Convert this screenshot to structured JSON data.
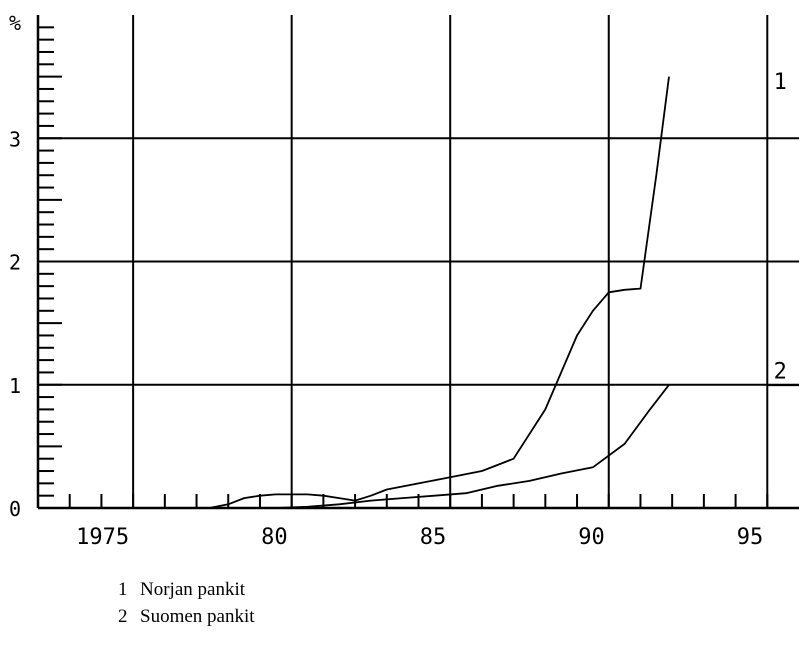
{
  "chart_data": {
    "type": "line",
    "ylabel": "%",
    "xlim": [
      1972,
      1996
    ],
    "ylim": [
      0,
      4
    ],
    "x_ticks": [
      1975,
      1980,
      1985,
      1990,
      1995
    ],
    "x_tick_labels": [
      "1975",
      "80",
      "85",
      "90",
      "95"
    ],
    "y_ticks": [
      0,
      1,
      2,
      3
    ],
    "y_tick_labels": [
      "0",
      "1",
      "2",
      "3"
    ],
    "grid": true,
    "series": [
      {
        "name": "Norjan pankit",
        "label": "1",
        "x": [
          1977.4,
          1978.0,
          1978.5,
          1979.0,
          1979.5,
          1980.0,
          1980.5,
          1981.0,
          1981.5,
          1982.0,
          1982.5,
          1983.0,
          1984.0,
          1985.0,
          1986.0,
          1986.5,
          1987.0,
          1988.0,
          1988.5,
          1989.0,
          1989.5,
          1990.0,
          1990.5,
          1991.0,
          1991.5,
          1991.9
        ],
        "y": [
          0.0,
          0.03,
          0.08,
          0.1,
          0.11,
          0.11,
          0.11,
          0.1,
          0.08,
          0.06,
          0.1,
          0.15,
          0.2,
          0.25,
          0.3,
          0.35,
          0.4,
          0.8,
          1.1,
          1.4,
          1.6,
          1.75,
          1.77,
          1.78,
          2.7,
          3.5
        ]
      },
      {
        "name": "Suomen pankit",
        "label": "2",
        "x": [
          1979.5,
          1980.5,
          1981.5,
          1982.5,
          1983.5,
          1984.5,
          1985.5,
          1986.5,
          1987.5,
          1988.5,
          1989.5,
          1990.5,
          1991.3,
          1991.9
        ],
        "y": [
          0.0,
          0.01,
          0.03,
          0.06,
          0.08,
          0.1,
          0.12,
          0.18,
          0.22,
          0.28,
          0.33,
          0.52,
          0.8,
          1.0
        ]
      }
    ]
  }
}
